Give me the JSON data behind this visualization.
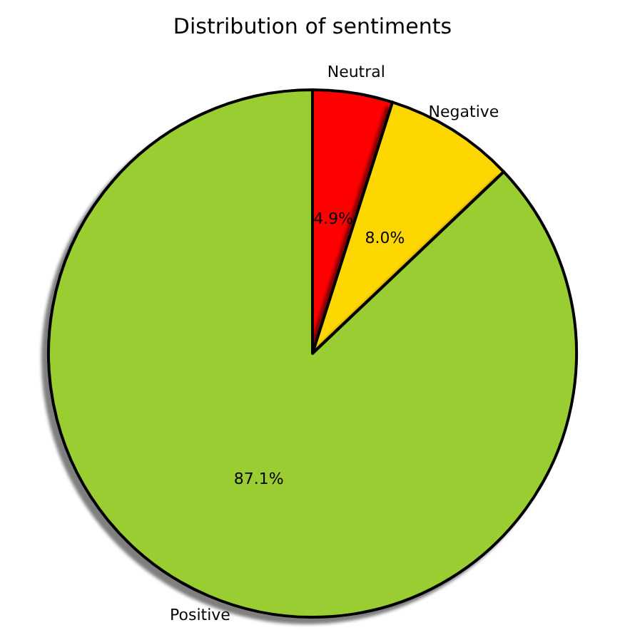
{
  "chart_data": {
    "type": "pie",
    "title": "Distribution of sentiments",
    "categories": [
      "Neutral",
      "Negative",
      "Positive"
    ],
    "values": [
      4.9,
      8.0,
      87.1
    ],
    "colors": [
      "#ff0000",
      "#ffd700",
      "#9acd32"
    ],
    "value_labels": [
      "4.9%",
      "8.0%",
      "87.1%"
    ]
  }
}
